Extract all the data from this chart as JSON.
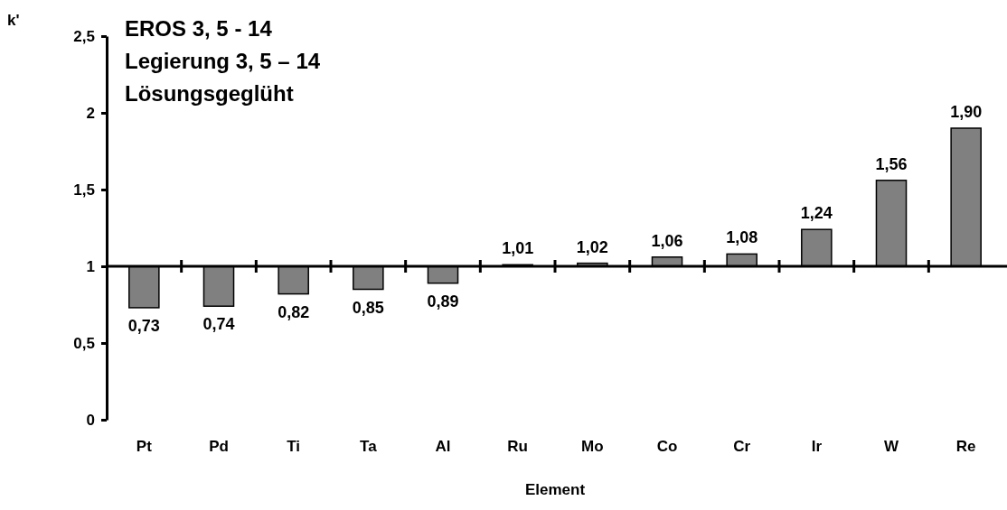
{
  "chart_data": {
    "type": "bar",
    "xlabel": "Element",
    "ylabel": "k'",
    "categories": [
      "Pt",
      "Pd",
      "Ti",
      "Ta",
      "Al",
      "Ru",
      "Mo",
      "Co",
      "Cr",
      "Ir",
      "W",
      "Re"
    ],
    "base": [
      1,
      1,
      1,
      1,
      1,
      1,
      1,
      1,
      1,
      1,
      1,
      1
    ],
    "values": [
      -0.27,
      -0.26,
      -0.18,
      -0.15,
      -0.11,
      0.01,
      0.02,
      0.06,
      0.08,
      0.24,
      0.56,
      0.9
    ],
    "value_labels": [
      "0,73",
      "0,74",
      "0,82",
      "0,85",
      "0,89",
      "1,01",
      "1,02",
      "1,06",
      "1,08",
      "1,24",
      "1,56",
      "1,90"
    ],
    "color": "#808080",
    "ylim": [
      0,
      2.5
    ],
    "yticks": [
      0,
      {
        "value": 0.5,
        "label": "0,5"
      },
      1,
      {
        "value": 1.5,
        "label": "1,5"
      },
      2,
      {
        "value": 2.5,
        "label": "2,5"
      }
    ],
    "annotations": [
      "EROS 3, 5 - 14",
      "Legierung 3, 5 – 14",
      "Lösungsgeglüht"
    ],
    "ref_lines": [
      {
        "axis": "y",
        "value": 1
      }
    ]
  }
}
